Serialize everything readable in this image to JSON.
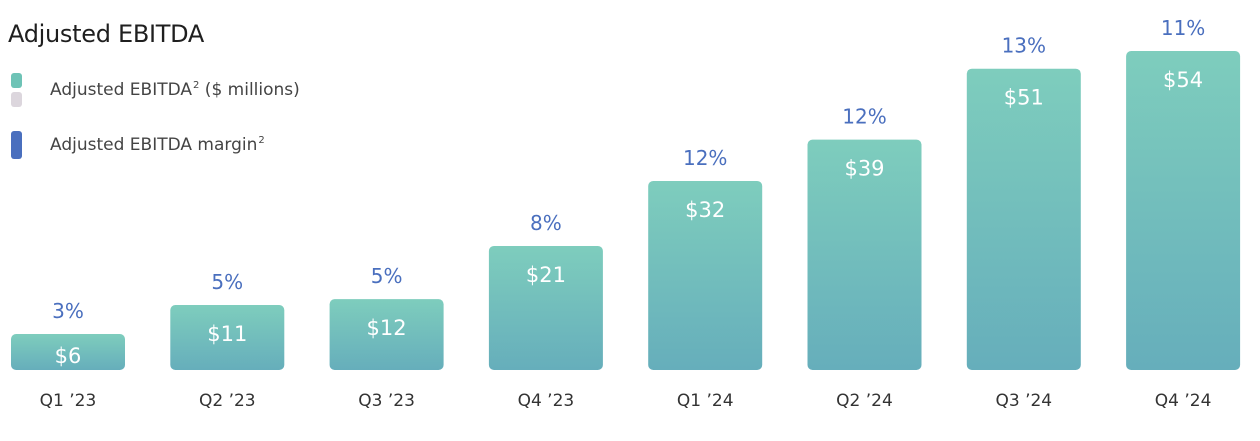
{
  "chart_data": {
    "type": "bar",
    "title": "Adjusted EBITDA",
    "categories": [
      "Q1 ’23",
      "Q2 ’23",
      "Q3 ’23",
      "Q4 ’23",
      "Q1 ’24",
      "Q2 ’24",
      "Q3 ’24",
      "Q4 ’24"
    ],
    "series": [
      {
        "name": "Adjusted EBITDA ($ millions)",
        "values": [
          6,
          11,
          12,
          21,
          32,
          39,
          51,
          54
        ],
        "labels": [
          "$6",
          "$11",
          "$12",
          "$21",
          "$32",
          "$39",
          "$51",
          "$54"
        ]
      },
      {
        "name": "Adjusted EBITDA margin",
        "values": [
          3,
          5,
          5,
          8,
          12,
          12,
          13,
          11
        ],
        "labels": [
          "3%",
          "5%",
          "5%",
          "8%",
          "12%",
          "12%",
          "13%",
          "11%"
        ]
      }
    ],
    "ylim": [
      0,
      54
    ],
    "grid": false,
    "legend_position": "top-left"
  },
  "legend": {
    "items": [
      {
        "label": "Adjusted EBITDA",
        "superscript": "2",
        "suffix": " ($ millions)"
      },
      {
        "label": "Adjusted EBITDA margin",
        "superscript": "2",
        "suffix": ""
      }
    ]
  },
  "colors": {
    "bar_top": "#7ecdbd",
    "bar_bottom": "#66aebb",
    "legend_swatch_teal": "#6ec3b6",
    "legend_swatch_grey": "#dcd6dd",
    "legend_swatch_blue": "#4a6fbe",
    "margin_label": "#4a6fbe",
    "value_label": "#ffffff",
    "category_label": "#333333"
  }
}
